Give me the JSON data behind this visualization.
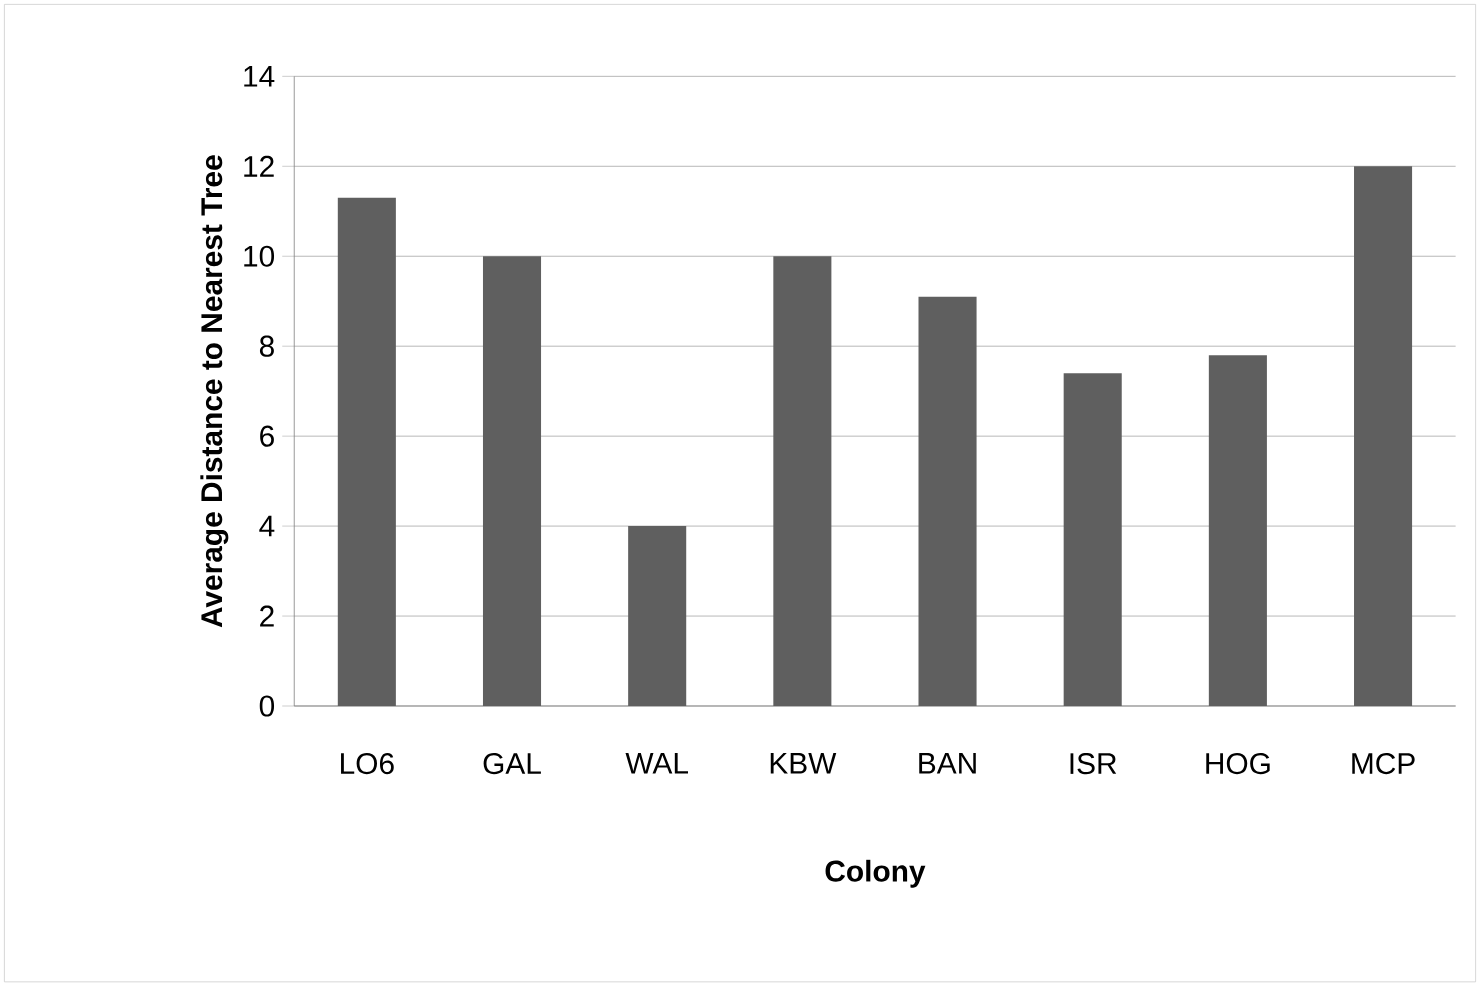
{
  "chart_data": {
    "type": "bar",
    "xlabel": "Colony",
    "ylabel": "Average Distance to Nearest Tree",
    "categories": [
      "LO6",
      "GAL",
      "WAL",
      "KBW",
      "BAN",
      "ISR",
      "HOG",
      "MCP"
    ],
    "values": [
      11.3,
      10,
      4,
      10,
      9.1,
      7.4,
      7.8,
      12
    ],
    "color": "#5f5f5f",
    "ylim": [
      0,
      14
    ],
    "yticks": [
      0,
      2,
      4,
      6,
      8,
      10,
      12,
      14
    ],
    "grid": "y"
  }
}
